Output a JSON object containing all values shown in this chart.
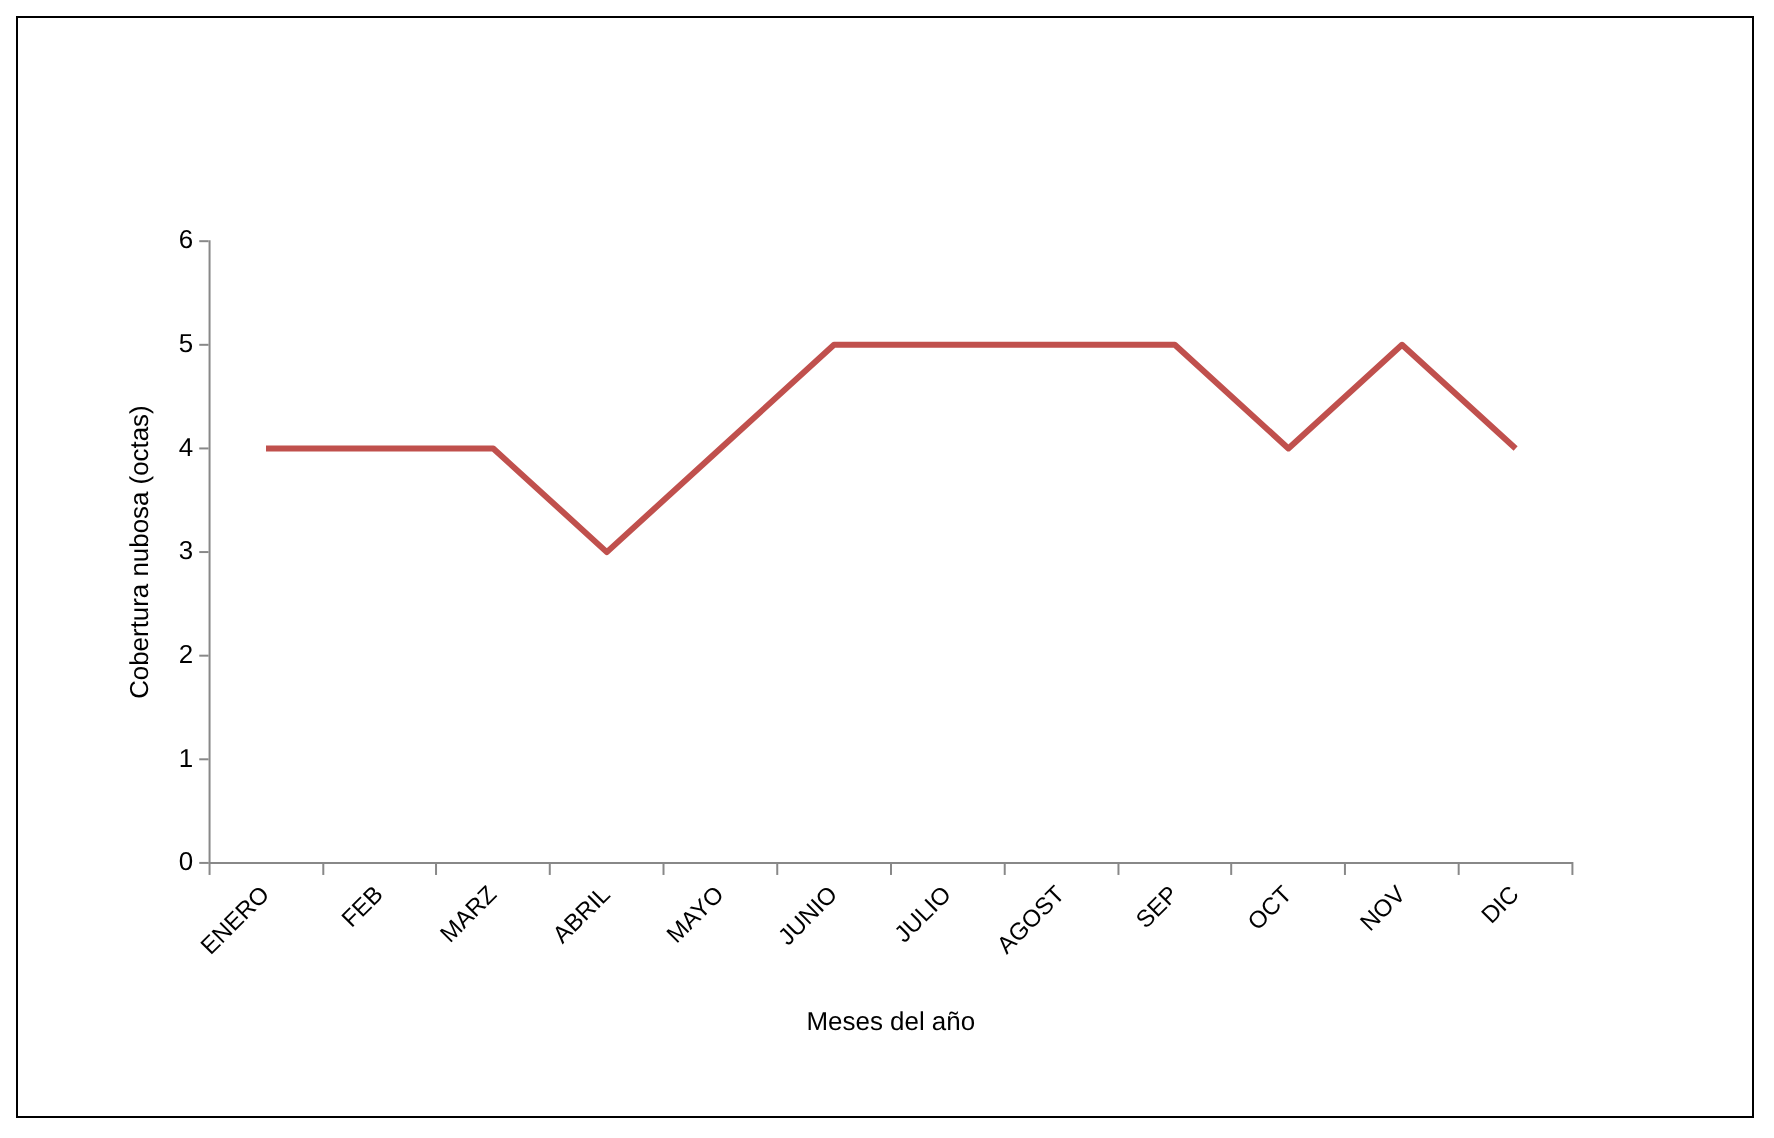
{
  "chart_data": {
    "type": "line",
    "xlabel": "Meses del año",
    "ylabel": "Cobertura nubosa (octas)",
    "categories": [
      "ENERO",
      "FEB",
      "MARZ",
      "ABRIL",
      "MAYO",
      "JUNIO",
      "JULIO",
      "AGOST",
      "SEP",
      "OCT",
      "NOV",
      "DIC"
    ],
    "series": [
      {
        "color": "#c0504d",
        "values": [
          4,
          4,
          4,
          3,
          4,
          5,
          5,
          5,
          5,
          4,
          5,
          4
        ]
      }
    ],
    "ylim": [
      0,
      6
    ],
    "yticks": [
      0,
      1,
      2,
      3,
      4,
      5,
      6
    ],
    "grid": false,
    "legend": false,
    "marker": "none",
    "line_style": "solid"
  }
}
